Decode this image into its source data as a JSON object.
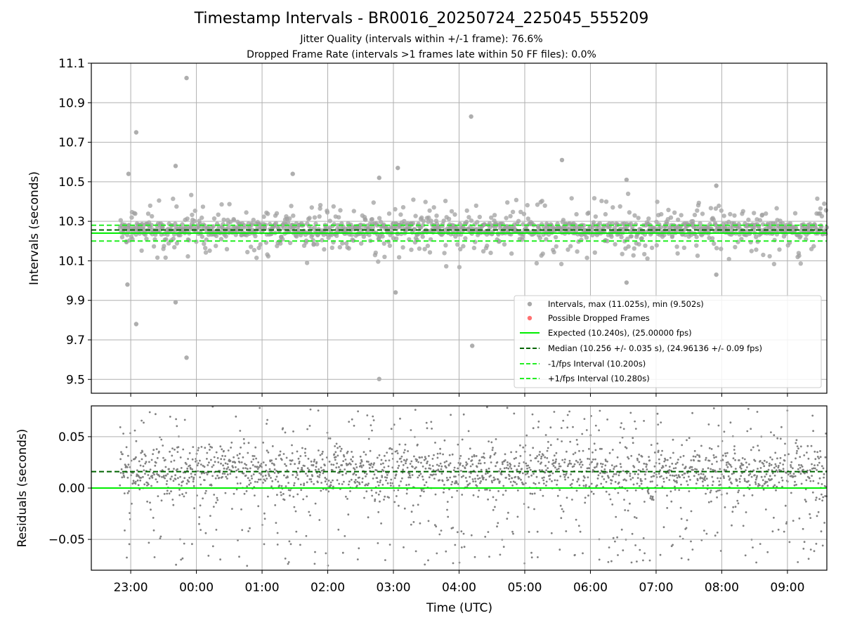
{
  "title": "Timestamp Intervals - BR0016_20250724_225045_555209",
  "subtitle_lines": [
    "Jitter Quality (intervals within +/-1 frame): 76.6%",
    "Dropped Frame Rate (intervals >1 frames late within 50 FF files): 0.0%"
  ],
  "colors": {
    "points": "#808080",
    "dropped": "#ff4d4d",
    "expected": "#00ee00",
    "median": "#006400",
    "interval": "#22ee22",
    "grid": "#b0b0b0"
  },
  "chart_data": [
    {
      "type": "scatter",
      "ylabel": "Intervals (seconds)",
      "xlabel": "",
      "ylim": [
        9.43,
        11.1
      ],
      "xlim": [
        "22:24",
        "09:36"
      ],
      "yticks": [
        "9.5",
        "9.7",
        "9.9",
        "10.1",
        "10.3",
        "10.5",
        "10.7",
        "10.9",
        "11.1"
      ],
      "grid": true,
      "legend_position": "lower-right",
      "expected": 10.24,
      "median": 10.256,
      "minus_interval": 10.2,
      "plus_interval": 10.28,
      "series": [
        {
          "name": "Intervals, max (11.025s), min (9.502s)",
          "kind": "points"
        },
        {
          "name": "Possible Dropped Frames",
          "kind": "dropped",
          "values": []
        },
        {
          "name": "Expected (10.240s), (25.00000 fps)",
          "kind": "line",
          "y": 10.24
        },
        {
          "name": "Median (10.256 +/- 0.035 s), (24.96136 +/- 0.09 fps)",
          "kind": "line",
          "y": 10.256
        },
        {
          "name": "-1/fps Interval (10.200s)",
          "kind": "line",
          "y": 10.2
        },
        {
          "name": "+1/fps Interval (10.280s)",
          "kind": "line",
          "y": 10.28
        }
      ],
      "notable_points": [
        {
          "x": "22:58",
          "y": 10.54
        },
        {
          "x": "23:05",
          "y": 10.75
        },
        {
          "x": "22:57",
          "y": 9.98
        },
        {
          "x": "23:05",
          "y": 9.78
        },
        {
          "x": "23:41",
          "y": 10.58
        },
        {
          "x": "23:41",
          "y": 9.89
        },
        {
          "x": "23:51",
          "y": 11.025
        },
        {
          "x": "23:51",
          "y": 9.61
        },
        {
          "x": "01:28",
          "y": 10.54
        },
        {
          "x": "02:47",
          "y": 10.52
        },
        {
          "x": "03:04",
          "y": 10.57
        },
        {
          "x": "02:47",
          "y": 9.502
        },
        {
          "x": "03:02",
          "y": 9.94
        },
        {
          "x": "04:11",
          "y": 10.83
        },
        {
          "x": "04:12",
          "y": 9.67
        },
        {
          "x": "05:34",
          "y": 10.61
        },
        {
          "x": "06:33",
          "y": 10.51
        },
        {
          "x": "06:33",
          "y": 9.99
        },
        {
          "x": "07:55",
          "y": 10.48
        },
        {
          "x": "07:55",
          "y": 10.03
        }
      ]
    },
    {
      "type": "scatter",
      "ylabel": "Residuals (seconds)",
      "xlabel": "Time (UTC)",
      "ylim": [
        -0.08,
        0.08
      ],
      "yticks": [
        "−0.05",
        "0.00",
        "0.05"
      ],
      "xticks": [
        "23:00",
        "00:00",
        "01:00",
        "02:00",
        "03:00",
        "04:00",
        "05:00",
        "06:00",
        "07:00",
        "08:00",
        "09:00"
      ],
      "grid": true,
      "expected": 0.0,
      "median": 0.016
    }
  ]
}
